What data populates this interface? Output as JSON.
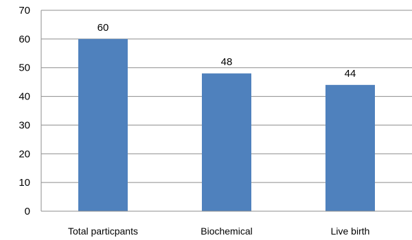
{
  "chart_data": {
    "type": "bar",
    "categories": [
      "Total particpants",
      "Biochemical",
      "Live birth"
    ],
    "values": [
      60,
      48,
      44
    ],
    "data_labels": [
      "60",
      "48",
      "44"
    ],
    "ylim": [
      0,
      70
    ],
    "yticks": [
      "0",
      "10",
      "20",
      "30",
      "40",
      "50",
      "60",
      "70"
    ],
    "grid": true,
    "legend": "none",
    "bar_color": "#4f81bd",
    "grid_color": "#8c8c8c"
  }
}
